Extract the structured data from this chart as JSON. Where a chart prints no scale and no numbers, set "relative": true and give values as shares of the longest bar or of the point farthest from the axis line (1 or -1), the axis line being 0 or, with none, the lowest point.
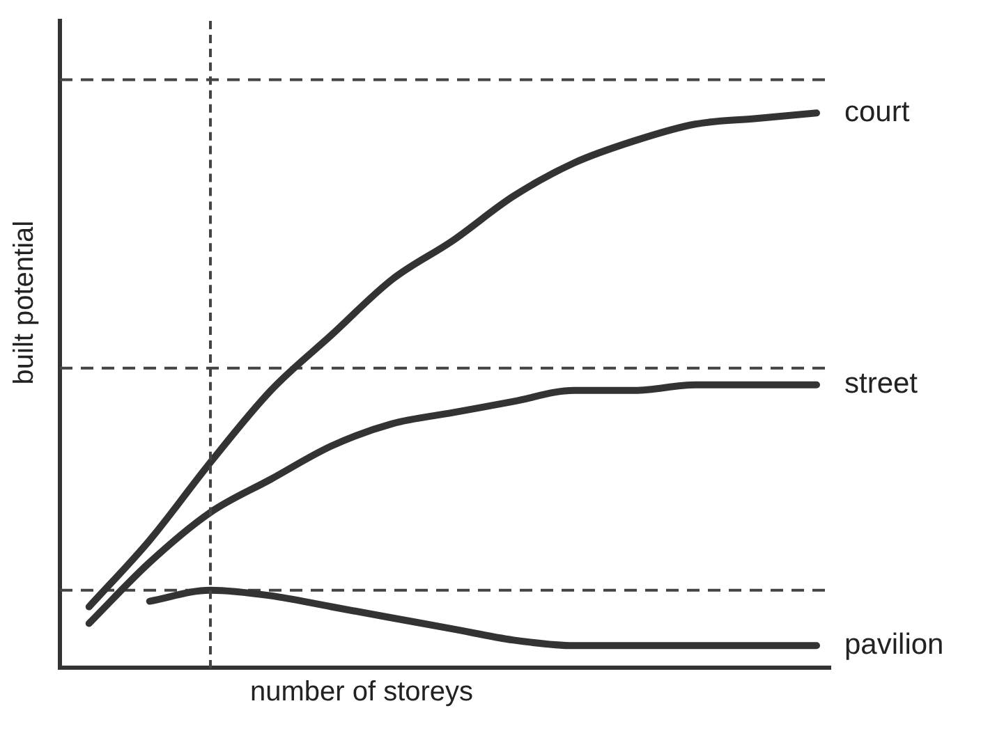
{
  "chart_data": {
    "type": "line",
    "relative": true,
    "xlabel": "number of storeys",
    "ylabel": "built potential",
    "categories": [
      null,
      null,
      null,
      null,
      null,
      null,
      null,
      null,
      null,
      null,
      null,
      null,
      null
    ],
    "series": [
      {
        "name": "court",
        "color": "#333333",
        "values": [
          0.11,
          0.23,
          0.37,
          0.5,
          0.6,
          0.7,
          0.77,
          0.85,
          0.91,
          0.95,
          0.98,
          0.99,
          1
        ]
      },
      {
        "name": "street",
        "color": "#333333",
        "values": [
          0.08,
          0.19,
          0.28,
          0.34,
          0.4,
          0.44,
          0.46,
          0.48,
          0.5,
          0.5,
          0.51,
          0.51,
          0.51
        ]
      },
      {
        "name": "pavilion",
        "color": "#333333",
        "values": [
          null,
          0.12,
          0.14,
          0.13,
          0.11,
          0.09,
          0.07,
          0.05,
          0.04,
          0.04,
          0.04,
          0.04,
          0.04
        ]
      }
    ],
    "ref_lines": [
      {
        "axis": "y",
        "value": 1.06,
        "line_style": "dashed",
        "color": "#444444"
      },
      {
        "axis": "y",
        "value": 0.54,
        "line_style": "dashed",
        "color": "#444444"
      },
      {
        "axis": "y",
        "value": 0.14,
        "line_style": "dashed",
        "color": "#444444"
      }
    ],
    "grid": false,
    "legend": false,
    "marker": "none",
    "line_style": "solid"
  }
}
